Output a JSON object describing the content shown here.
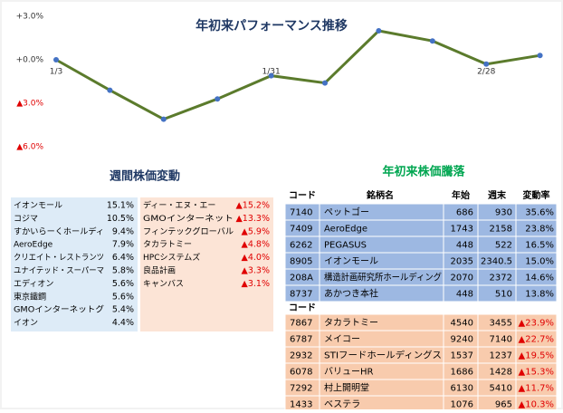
{
  "chart_data": {
    "type": "line",
    "title": "年初来パフォーマンス推移",
    "categories": [
      "1/3",
      null,
      null,
      null,
      "1/31",
      null,
      null,
      null,
      "2/28",
      null
    ],
    "series": [
      {
        "color": "#5b7b2c",
        "marker_color": "#4472c4",
        "values": [
          0,
          -2.1,
          -4.1,
          -2.7,
          -1.1,
          -1.6,
          2.0,
          1.3,
          -0.3,
          0.3
        ]
      }
    ],
    "ylim": [
      -6,
      3
    ],
    "yticks": [
      {
        "value": 3,
        "label": "+3.0%"
      },
      {
        "value": 0,
        "label": "+0.0%"
      },
      {
        "value": -3,
        "label": "▲3.0%"
      },
      {
        "value": -6,
        "label": "▲6.0%"
      }
    ]
  },
  "weekly": {
    "title": "週間株価変動",
    "gainers": [
      [
        "イオンモール",
        "15.1%"
      ],
      [
        "コジマ",
        "10.5%"
      ],
      [
        "すかいらーくホールディ",
        "9.4%"
      ],
      [
        "AeroEdge",
        "7.9%"
      ],
      [
        "クリエイト・レストランツ",
        "6.4%"
      ],
      [
        "ユナイテッド・スーパーマ",
        "5.8%"
      ],
      [
        "エディオン",
        "5.6%"
      ],
      [
        "東京鐵鋼",
        "5.6%"
      ],
      [
        "GMOインターネットグ",
        "5.4%"
      ],
      [
        "イオン",
        "4.4%"
      ]
    ],
    "losers": [
      [
        "ディー・エヌ・エー",
        "▲15.2%"
      ],
      [
        "GMOインターネット",
        "▲13.3%"
      ],
      [
        "フィンテックグローバル",
        "▲5.9%"
      ],
      [
        "タカラトミー",
        "▲4.8%"
      ],
      [
        "HPCシステムズ",
        "▲4.0%"
      ],
      [
        "良品計画",
        "▲3.3%"
      ],
      [
        "キャンバス",
        "▲3.1%"
      ]
    ]
  },
  "ytd": {
    "title": "年初来株価騰落",
    "header": [
      "コード",
      "銘柄名",
      "年始",
      "週末",
      "変動率"
    ],
    "gainers": [
      [
        "7140",
        "ペットゴー",
        "686",
        "930",
        "35.6%"
      ],
      [
        "7409",
        "AeroEdge",
        "1743",
        "2158",
        "23.8%"
      ],
      [
        "6262",
        "PEGASUS",
        "448",
        "522",
        "16.5%"
      ],
      [
        "8905",
        "イオンモール",
        "2035",
        "2340.5",
        "15.0%"
      ],
      [
        "208A",
        "構造計画研究所ホールディング",
        "2070",
        "2372",
        "14.6%"
      ],
      [
        "8737",
        "あかつき本社",
        "448",
        "510",
        "13.8%"
      ]
    ],
    "sub_header": "コード",
    "losers": [
      [
        "7867",
        "タカラトミー",
        "4540",
        "3455",
        "▲23.9%"
      ],
      [
        "6787",
        "メイコー",
        "9240",
        "7140",
        "▲22.7%"
      ],
      [
        "2932",
        "STIフードホールディングス",
        "1537",
        "1237",
        "▲19.5%"
      ],
      [
        "6078",
        "バリューHR",
        "1686",
        "1428",
        "▲15.3%"
      ],
      [
        "7292",
        "村上開明堂",
        "6130",
        "5410",
        "▲11.7%"
      ],
      [
        "1433",
        "ベステラ",
        "1076",
        "965",
        "▲10.3%"
      ]
    ]
  }
}
